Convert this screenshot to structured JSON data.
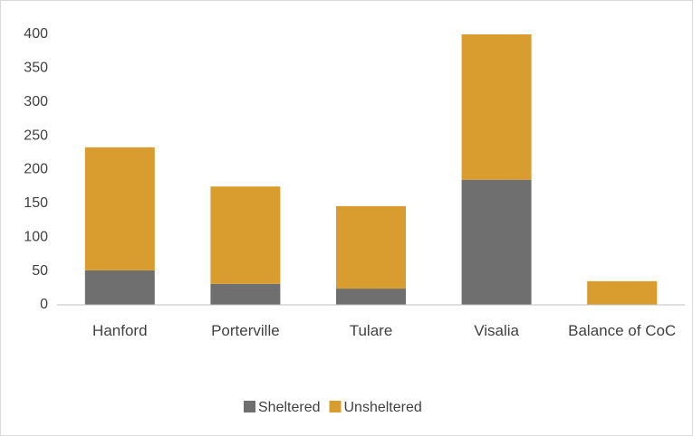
{
  "chart_data": {
    "type": "stacked_bar",
    "categories": [
      "Hanford",
      "Porterville",
      "Tulare",
      "Visalia",
      "Balance of CoC"
    ],
    "series": [
      {
        "name": "Sheltered",
        "color": "#6f6f6f",
        "values": [
          51,
          31,
          24,
          185,
          0
        ]
      },
      {
        "name": "Unsheltered",
        "color": "#d99c2f",
        "values": [
          182,
          144,
          122,
          215,
          35
        ]
      }
    ],
    "ylim": [
      0,
      400
    ],
    "yticks": [
      0,
      50,
      100,
      150,
      200,
      250,
      300,
      350,
      400
    ],
    "grid": false,
    "legend": "bottom"
  }
}
